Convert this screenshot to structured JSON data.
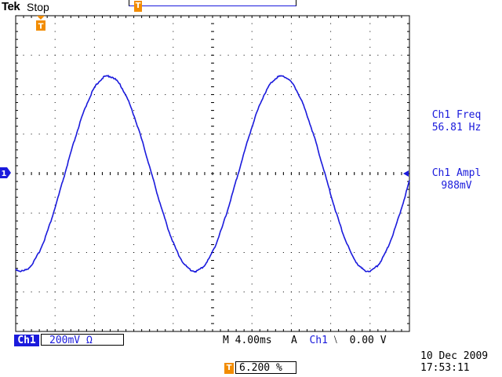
{
  "header": {
    "brand": "Tek",
    "acquisition_state": "Stop"
  },
  "markers": {
    "trigger_position_glyph": "T",
    "channel_number": "1"
  },
  "measurements": {
    "freq_label": "Ch1 Freq",
    "freq_value": "56.81 Hz",
    "ampl_label": "Ch1 Ampl",
    "ampl_value": "988mV"
  },
  "status": {
    "channel_label": "Ch1",
    "volts_per_div": "200mV",
    "coupling_symbol": "Ω",
    "timebase": "M 4.00ms",
    "trigger_mode": "A",
    "trigger_source": "Ch1",
    "trigger_slope_symbol": "⧵",
    "trigger_level": "0.00 V",
    "trigger_level_glyph": "T",
    "trigger_level_percent": "6.200 %",
    "date": "10 Dec  2009",
    "time": "17:53:11"
  },
  "waveform": {
    "color": "#1a1adc",
    "frequency_hz": 56.81,
    "amplitude_divisions": 2.47,
    "offset_divisions": 0,
    "time_per_div_ms": 4.0,
    "horizontal_divisions": 10,
    "vertical_divisions": 8,
    "first_peak_time_ms": 9.4
  },
  "colors": {
    "waveform": "#1a1adc",
    "trigger_marker": "#f28c00",
    "grid": "#000000",
    "background": "#ffffff"
  }
}
